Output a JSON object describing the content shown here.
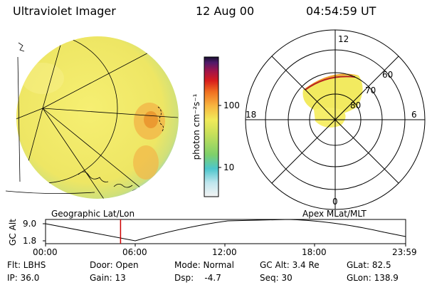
{
  "header": {
    "instrument": "Ultraviolet Imager",
    "date": "12 Aug 00",
    "time": "04:54:59 UT"
  },
  "colorbar": {
    "tick_labels": [
      "100",
      "10"
    ],
    "unit_label": "photon cm⁻²s⁻¹"
  },
  "polar_plot": {
    "mlt_labels": [
      "12",
      "18",
      "6",
      "0"
    ],
    "lat_labels": [
      "60",
      "70",
      "80"
    ]
  },
  "timeline": {
    "left_title": "Geographic Lat/Lon",
    "right_title": "Apex MLat/MLT",
    "axis_label": "GC Alt",
    "y_ticks": [
      "9.0",
      "1.8"
    ],
    "x_ticks": [
      "00:00",
      "06:00",
      "12:00",
      "18:00",
      "23:59"
    ],
    "current_time_fraction": 0.2083
  },
  "status": {
    "row1": [
      "Flt: LBHS",
      "Door: Open",
      "Mode: Normal",
      "GC Alt: 3.4 Re",
      "GLat: 82.5"
    ],
    "row2": [
      "IP: 36.0",
      "Gain: 13",
      "Dsp:    -4.7",
      "Seq: 30",
      "GLon: 138.9"
    ]
  },
  "colors": {
    "earth_fill": "#f4ea6a",
    "aurora_orange": "#f0a030",
    "limb_cyan": "#7fd4e6",
    "current_time_marker": "#cc0000"
  }
}
